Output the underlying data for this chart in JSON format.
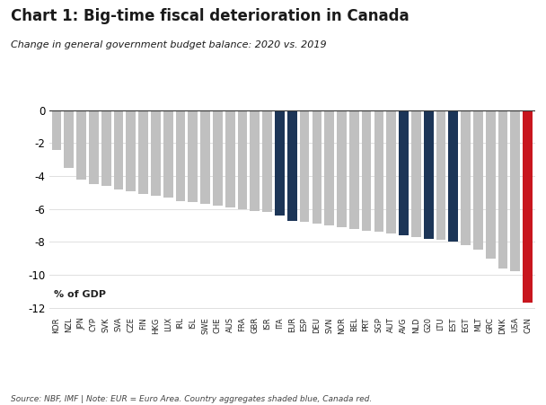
{
  "title": "Chart 1: Big-time fiscal deterioration in Canada",
  "subtitle": "Change in general government budget balance: 2020 vs. 2019",
  "ylabel": "% of GDP",
  "source": "Source: NBF, IMF | Note: EUR = Euro Area. Country aggregates shaded blue, Canada red.",
  "categories": [
    "KOR",
    "NZL",
    "JPN",
    "CYP",
    "SVK",
    "SVA",
    "CZE",
    "FIN",
    "HKG",
    "LUX",
    "IRL",
    "ISL",
    "SWE",
    "CHE",
    "AUS",
    "FRA",
    "GBR",
    "ISR",
    "ITA",
    "EUR",
    "ESP",
    "DEU",
    "SVN",
    "NOR",
    "BEL",
    "PRT",
    "SGP",
    "AUT",
    "AVG",
    "NLD",
    "G20",
    "LTU",
    "EST",
    "EGT",
    "MLT",
    "GRC",
    "DNK",
    "USA",
    "CAN"
  ],
  "values": [
    -2.4,
    -3.5,
    -4.2,
    -4.5,
    -4.6,
    -4.8,
    -4.9,
    -5.1,
    -5.2,
    -5.3,
    -5.5,
    -5.6,
    -5.7,
    -5.8,
    -5.9,
    -6.0,
    -6.1,
    -6.2,
    -6.4,
    -6.7,
    -6.8,
    -6.9,
    -7.0,
    -7.1,
    -7.2,
    -7.3,
    -7.4,
    -7.5,
    -7.6,
    -7.7,
    -7.8,
    -7.9,
    -8.0,
    -8.2,
    -8.5,
    -9.0,
    -9.6,
    -9.8,
    -11.7
  ],
  "colors": {
    "gray": "#C0C0C0",
    "blue": "#1C3557",
    "red": "#C8161E",
    "grid": "#E0E0E0",
    "background": "#FFFFFF",
    "title": "#1a1a1a"
  },
  "blue_indices": [
    18,
    19,
    28,
    30,
    32
  ],
  "red_indices": [
    38
  ],
  "ylim": [
    -12.5,
    0.3
  ],
  "yticks": [
    0,
    -2,
    -4,
    -6,
    -8,
    -10,
    -12
  ]
}
